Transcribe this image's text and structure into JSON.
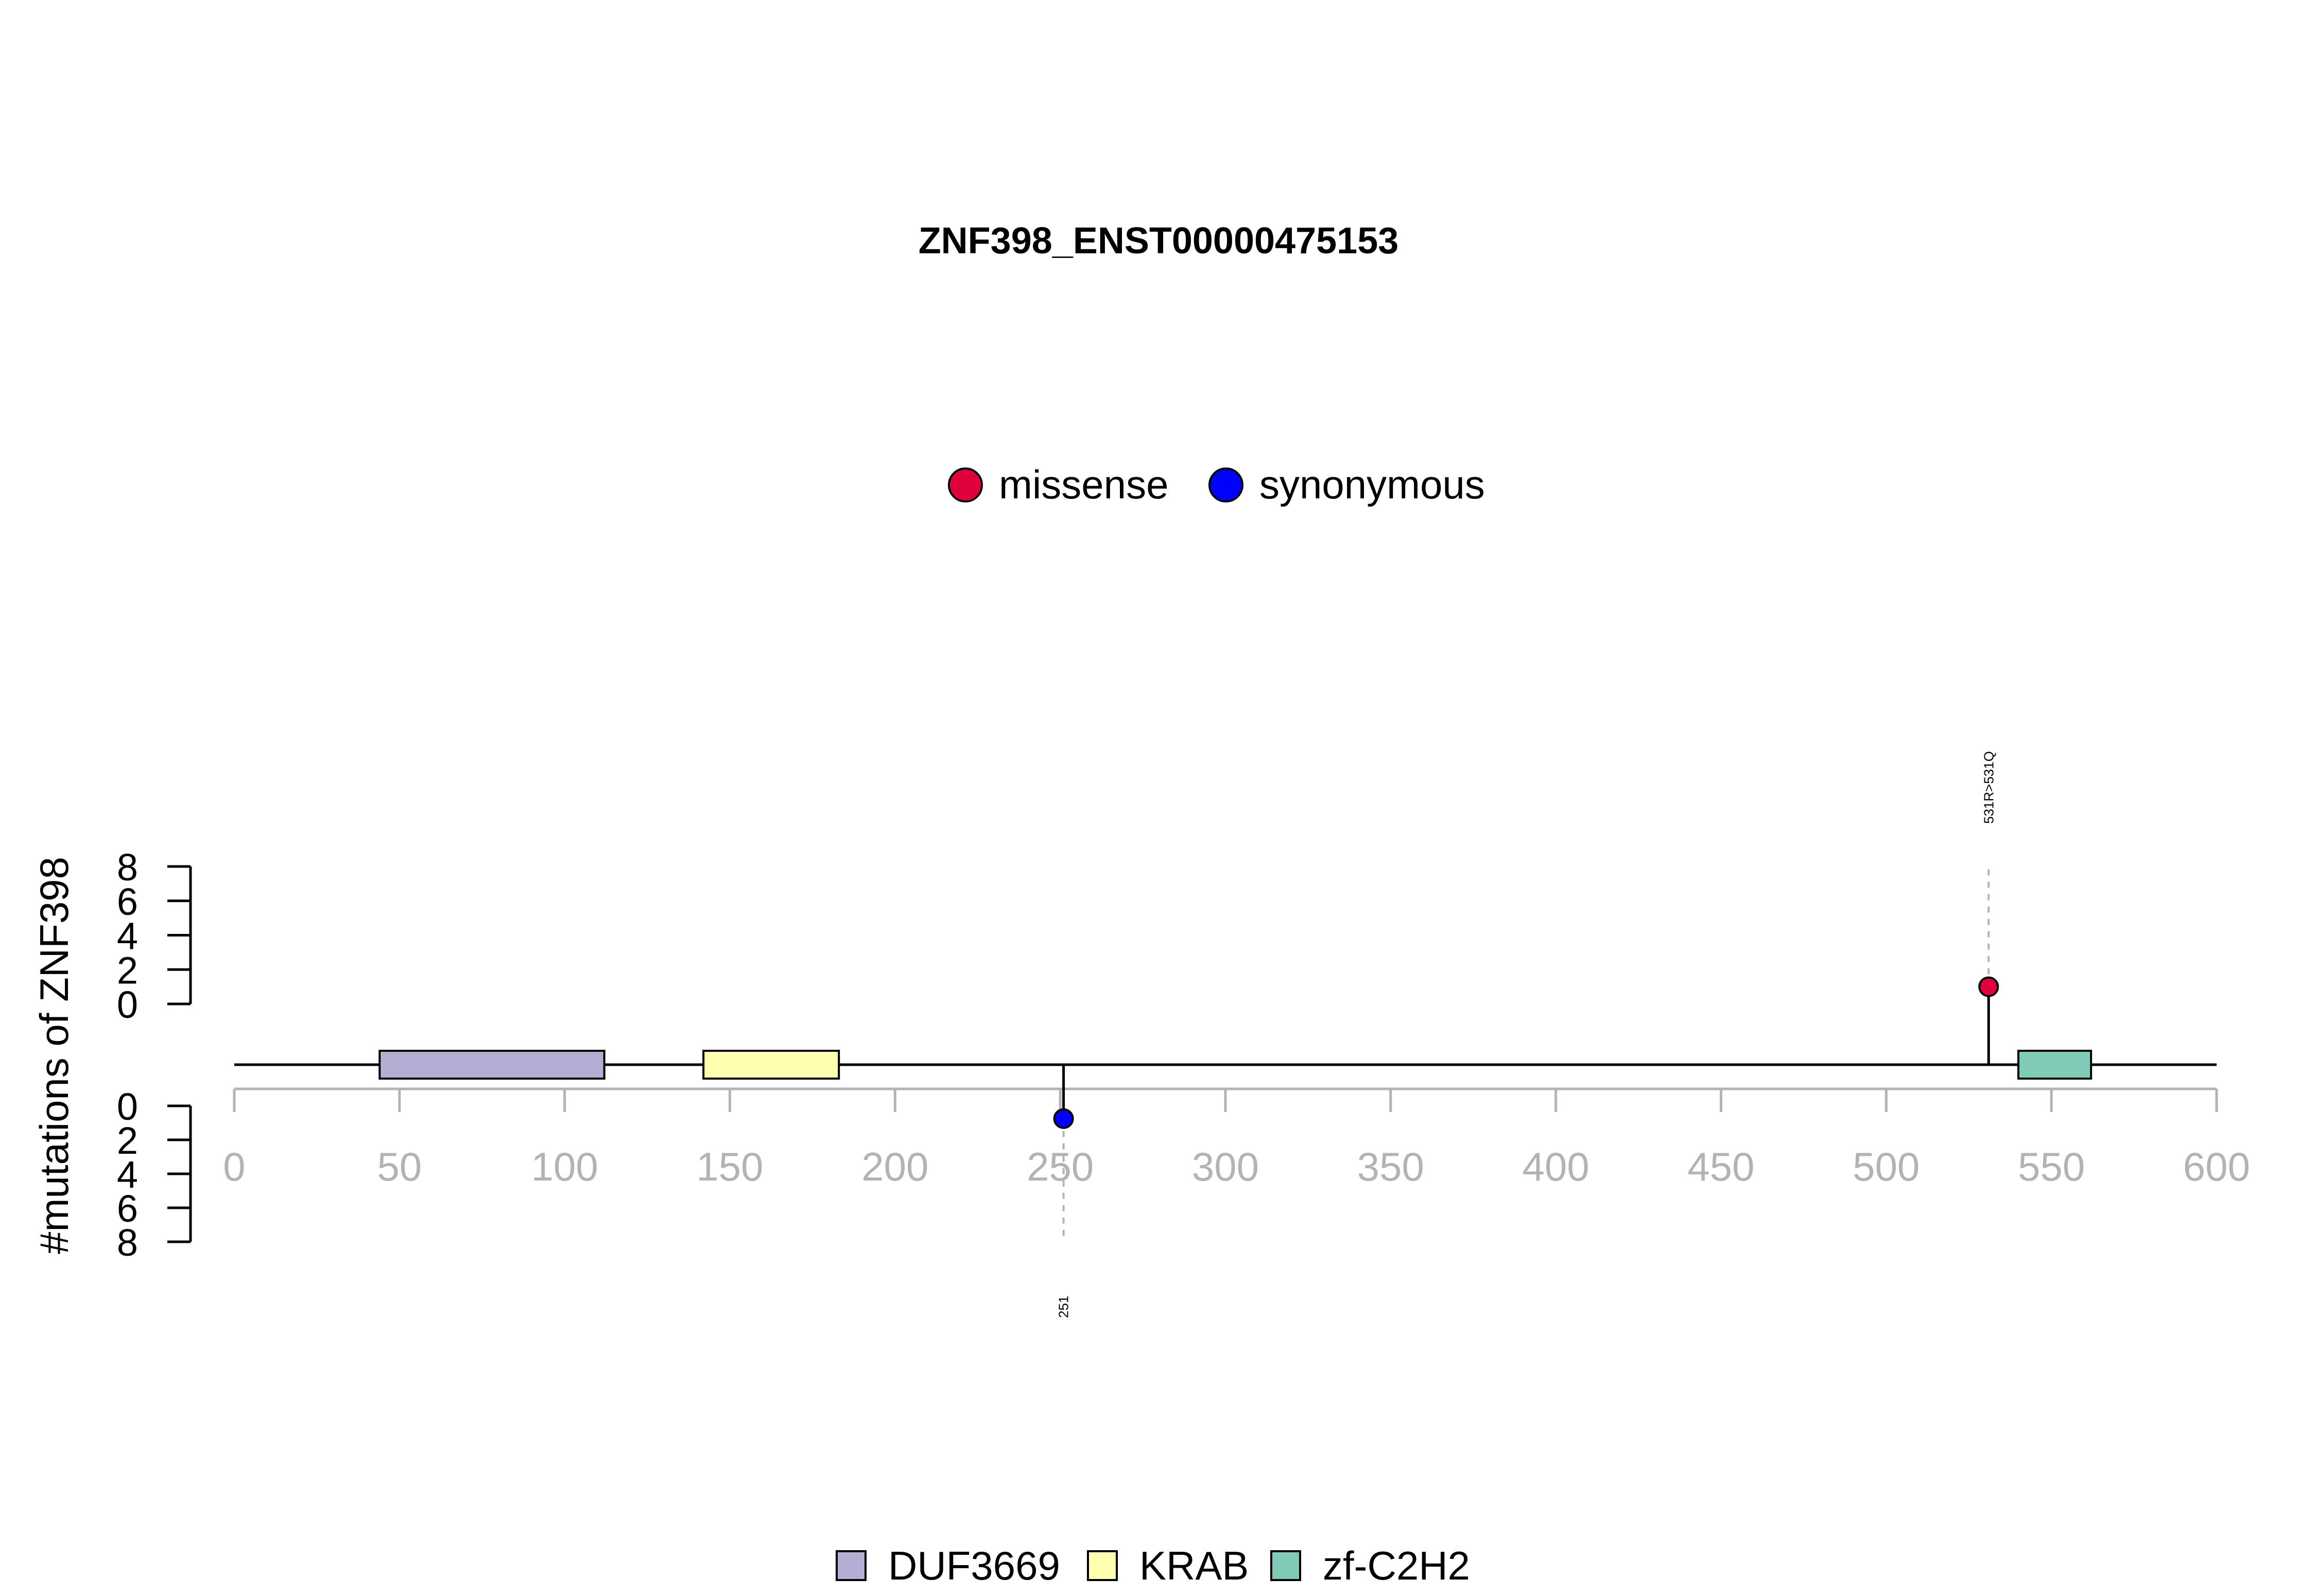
{
  "chart_data": {
    "type": "lollipop",
    "title": "ZNF398_ENST00000475153",
    "ylabel": "#mutations of ZNF398",
    "xlim": [
      0,
      600
    ],
    "x_ticks": [
      0,
      50,
      100,
      150,
      200,
      250,
      300,
      350,
      400,
      450,
      500,
      550,
      600
    ],
    "ylim_top": [
      0,
      8
    ],
    "ylim_bottom": [
      0,
      8
    ],
    "y_ticks": [
      0,
      2,
      4,
      6,
      8
    ],
    "mutation_legend": [
      {
        "name": "missense",
        "color": "#e0003c"
      },
      {
        "name": "synonymous",
        "color": "#0000ff"
      }
    ],
    "mutations": [
      {
        "position": 531,
        "label": "531R>531Q",
        "count": 1,
        "type": "missense",
        "side": "top"
      },
      {
        "position": 251,
        "label": "251",
        "count": 1,
        "type": "synonymous",
        "side": "bottom"
      }
    ],
    "domains": [
      {
        "name": "DUF3669",
        "start": 44,
        "end": 112,
        "color": "#b3aed3"
      },
      {
        "name": "KRAB",
        "start": 142,
        "end": 183,
        "color": "#ffffb0"
      },
      {
        "name": "zf-C2H2",
        "start": 540,
        "end": 562,
        "color": "#80cbb7"
      }
    ]
  }
}
